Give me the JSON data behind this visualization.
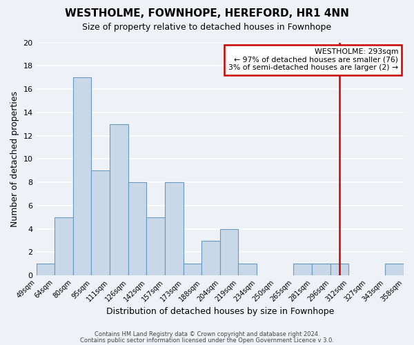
{
  "title": "WESTHOLME, FOWNHOPE, HEREFORD, HR1 4NN",
  "subtitle": "Size of property relative to detached houses in Fownhope",
  "xlabel": "Distribution of detached houses by size in Fownhope",
  "ylabel": "Number of detached properties",
  "tick_labels": [
    "49sqm",
    "64sqm",
    "80sqm",
    "95sqm",
    "111sqm",
    "126sqm",
    "142sqm",
    "157sqm",
    "173sqm",
    "188sqm",
    "204sqm",
    "219sqm",
    "234sqm",
    "250sqm",
    "265sqm",
    "281sqm",
    "296sqm",
    "312sqm",
    "327sqm",
    "343sqm",
    "358sqm"
  ],
  "values": [
    1,
    5,
    17,
    9,
    13,
    8,
    5,
    8,
    1,
    3,
    4,
    1,
    0,
    0,
    1,
    1,
    1,
    0,
    0,
    1
  ],
  "bar_color": "#c8d8e8",
  "bar_edge_color": "#6699bb",
  "vline_x": 16.0,
  "vline_color": "#cc0000",
  "ylim": [
    0,
    20
  ],
  "yticks": [
    0,
    2,
    4,
    6,
    8,
    10,
    12,
    14,
    16,
    18,
    20
  ],
  "annotation_title": "WESTHOLME: 293sqm",
  "annotation_line1": "← 97% of detached houses are smaller (76)",
  "annotation_line2": "3% of semi-detached houses are larger (2) →",
  "annotation_box_facecolor": "#ffffff",
  "annotation_box_edgecolor": "#cc0000",
  "footer_line1": "Contains HM Land Registry data © Crown copyright and database right 2024.",
  "footer_line2": "Contains public sector information licensed under the Open Government Licence v 3.0.",
  "background_color": "#eef2f7",
  "grid_color": "#ffffff"
}
